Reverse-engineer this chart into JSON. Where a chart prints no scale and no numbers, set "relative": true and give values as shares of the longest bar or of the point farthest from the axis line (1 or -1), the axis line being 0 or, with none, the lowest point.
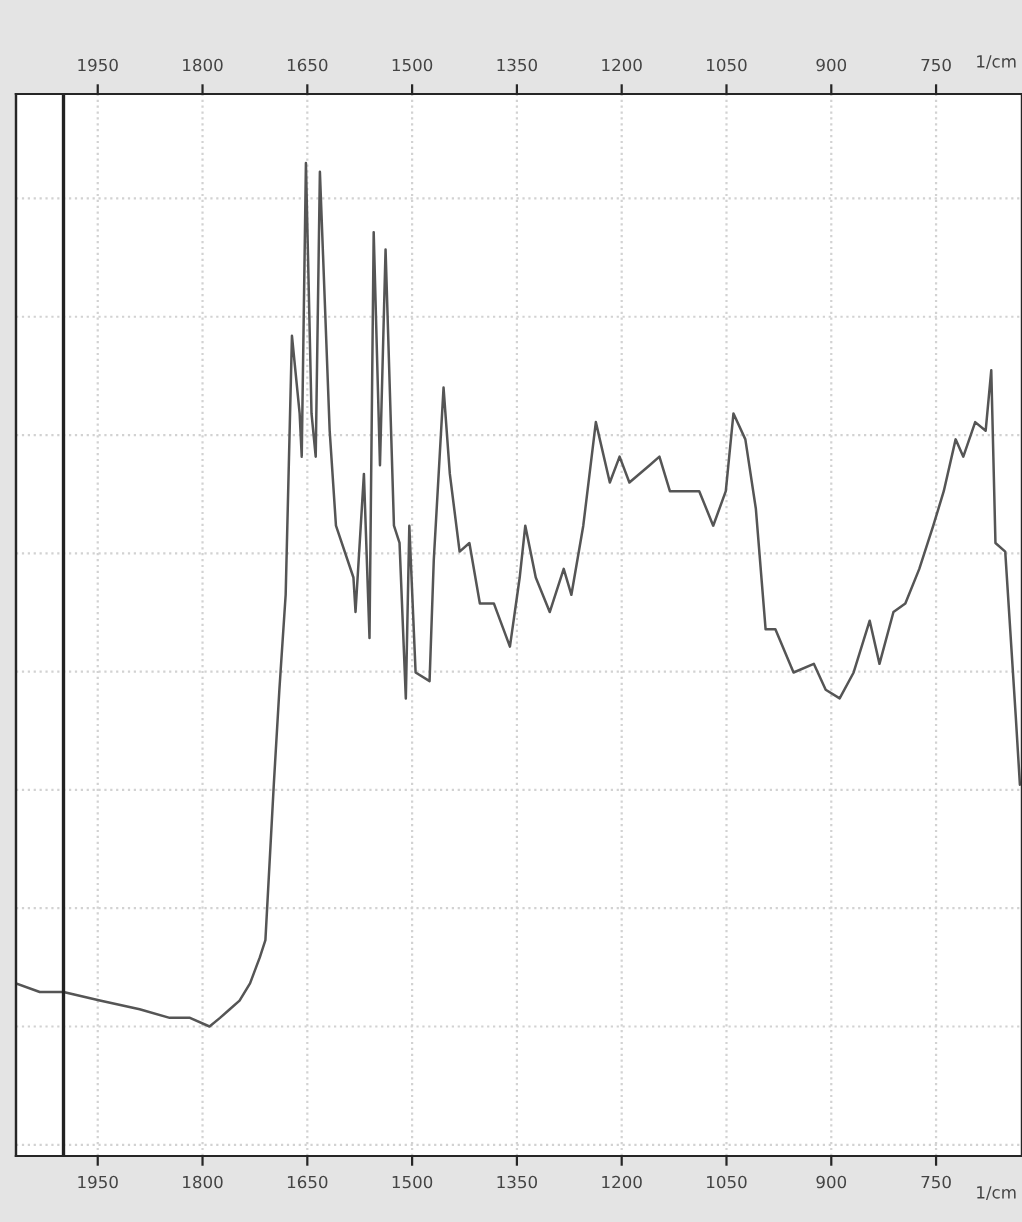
{
  "chart_data": {
    "type": "line",
    "relative": true,
    "xlabel": "1/cm",
    "x2label": "1/cm",
    "xlim": [
      2067,
      627
    ],
    "xticks": [
      1950,
      1800,
      1650,
      1500,
      1350,
      1200,
      1050,
      900,
      750
    ],
    "x2lim": [
      2067,
      627
    ],
    "x2ticks": [
      1950,
      1800,
      1650,
      1500,
      1350,
      1200,
      1050,
      900,
      750
    ],
    "grid": true,
    "line_style": "solid",
    "marker": "none",
    "ref_lines": [
      {
        "axis": "x",
        "value": 1999,
        "color": "#222222"
      }
    ],
    "series": [
      {
        "color": "#555555",
        "x": [
          2067,
          2033,
          1999,
          1947,
          1890,
          1847,
          1818,
          1790,
          1775,
          1761,
          1747,
          1732,
          1718,
          1710,
          1698,
          1690,
          1681,
          1672,
          1661,
          1658,
          1652,
          1644,
          1638,
          1632,
          1618,
          1609,
          1584,
          1581,
          1569,
          1561,
          1555,
          1546,
          1538,
          1526,
          1518,
          1509,
          1504,
          1495,
          1475,
          1469,
          1455,
          1446,
          1432,
          1418,
          1403,
          1383,
          1360,
          1346,
          1338,
          1323,
          1303,
          1283,
          1272,
          1255,
          1237,
          1217,
          1203,
          1189,
          1160,
          1146,
          1131,
          1109,
          1089,
          1069,
          1051,
          1040,
          1023,
          1008,
          994,
          980,
          954,
          925,
          908,
          888,
          868,
          845,
          831,
          811,
          794,
          774,
          754,
          739,
          722,
          711,
          694,
          679,
          671,
          665,
          651,
          636,
          630
        ],
        "values": [
          0.05,
          0.04,
          0.04,
          0.03,
          0.02,
          0.01,
          0.01,
          0,
          0.01,
          0.02,
          0.03,
          0.05,
          0.08,
          0.1,
          0.28,
          0.39,
          0.5,
          0.8,
          0.71,
          0.66,
          1.0,
          0.71,
          0.66,
          0.99,
          0.69,
          0.58,
          0.52,
          0.48,
          0.64,
          0.45,
          0.92,
          0.65,
          0.9,
          0.58,
          0.56,
          0.38,
          0.58,
          0.41,
          0.4,
          0.54,
          0.74,
          0.64,
          0.55,
          0.56,
          0.49,
          0.49,
          0.44,
          0.52,
          0.58,
          0.52,
          0.48,
          0.53,
          0.5,
          0.58,
          0.7,
          0.63,
          0.66,
          0.63,
          0.65,
          0.66,
          0.62,
          0.62,
          0.62,
          0.58,
          0.62,
          0.71,
          0.68,
          0.6,
          0.46,
          0.46,
          0.41,
          0.42,
          0.39,
          0.38,
          0.41,
          0.47,
          0.42,
          0.48,
          0.49,
          0.53,
          0.58,
          0.62,
          0.68,
          0.66,
          0.7,
          0.69,
          0.76,
          0.56,
          0.55,
          0.36,
          0.28
        ]
      }
    ]
  }
}
